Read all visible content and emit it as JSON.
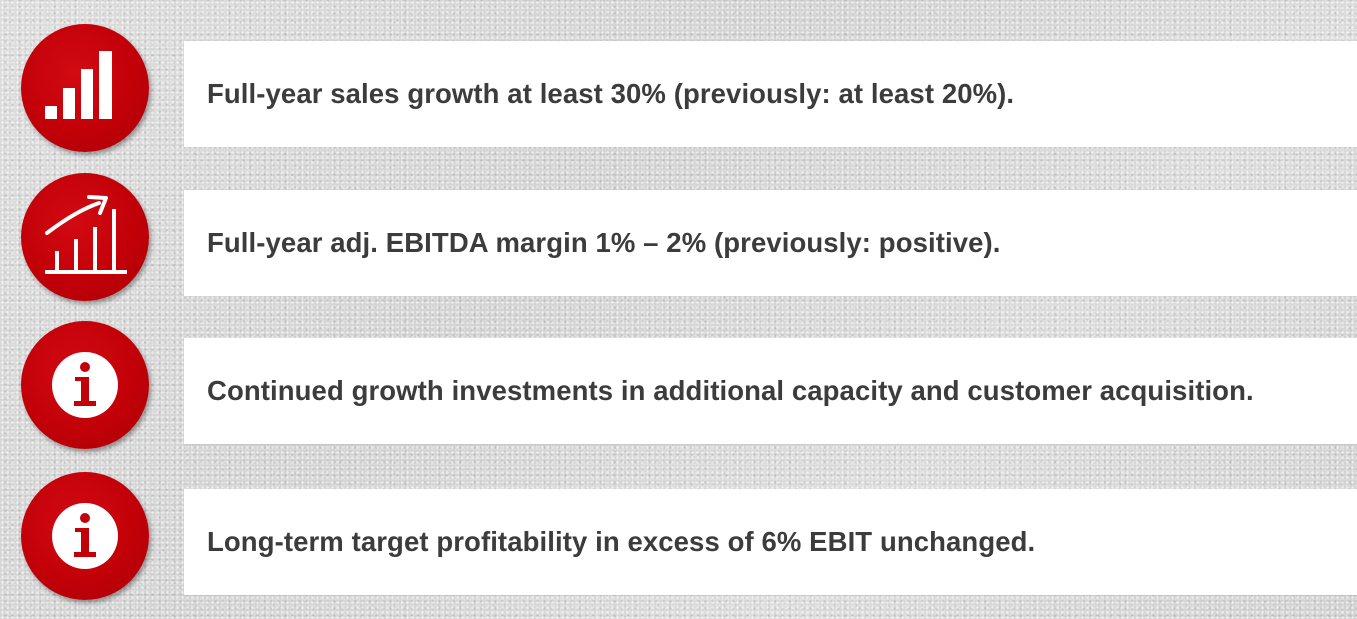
{
  "colors": {
    "icon_circle": "#c20008",
    "icon_glyph": "#ffffff",
    "text": "#3c3c3c",
    "box_background": "#ffffff",
    "page_background": "#d5d5d5"
  },
  "items": [
    {
      "icon": "bar-chart-icon",
      "text": "Full-year sales growth at least 30% (previously: at least 20%)."
    },
    {
      "icon": "growth-chart-icon",
      "text": "Full-year adj. EBITDA margin 1% – 2% (previously: positive)."
    },
    {
      "icon": "info-icon",
      "text": "Continued growth investments in additional capacity and customer acquisition."
    },
    {
      "icon": "info-icon",
      "text": "Long-term target profitability in excess of 6% EBIT unchanged."
    }
  ]
}
